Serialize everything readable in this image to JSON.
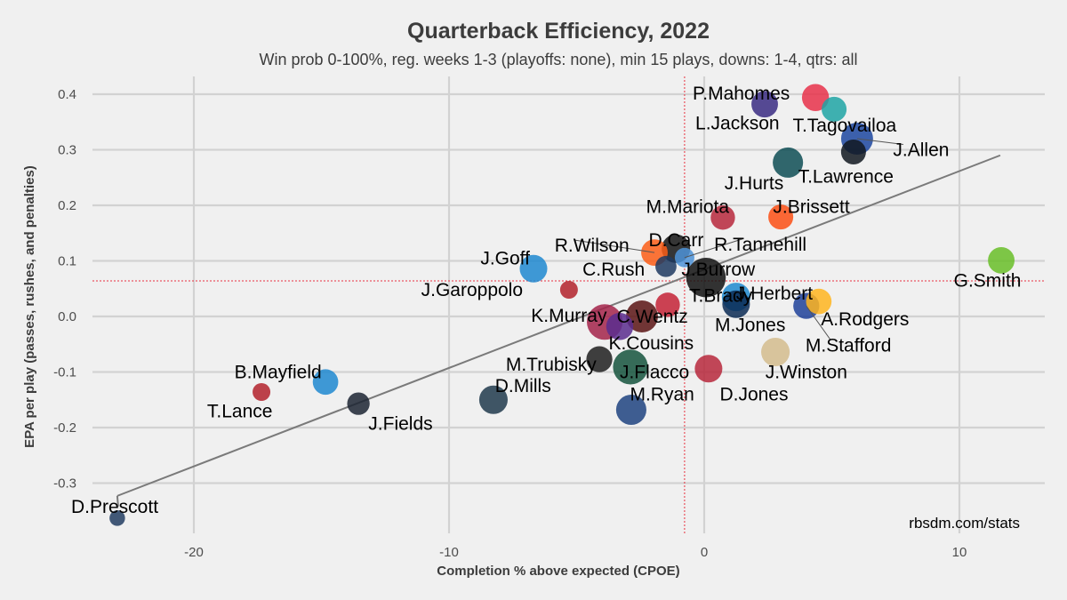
{
  "chart_data": {
    "type": "scatter",
    "title": "Quarterback Efficiency, 2022",
    "subtitle": "Win prob 0-100%, reg. weeks 1-3 (playoffs: none), min 15 plays, downs: 1-4, qtrs: all",
    "xlabel": "Completion % above expected (CPOE)",
    "ylabel": "EPA per play (passes, rushes, and penalties)",
    "caption": "rbsdm.com/stats",
    "xlim": [
      -24.4,
      13.3
    ],
    "ylim": [
      -0.375,
      0.42
    ],
    "x_ticks": [
      -20,
      -10,
      0,
      10
    ],
    "x_tick_labels": [
      "-20",
      "-10",
      "0",
      "10"
    ],
    "y_ticks": [
      0.4,
      0.3,
      0.2,
      0.1,
      0.0,
      -0.1,
      -0.2,
      -0.3
    ],
    "y_tick_labels": [
      "0.4",
      "0.3",
      "0.2",
      "0.1",
      "0.0",
      "-0.1",
      "-0.2",
      "-0.3"
    ],
    "grid": true,
    "mean_lines": {
      "x": -0.77,
      "y": 0.064,
      "color": "#e8313f"
    },
    "fit_line": {
      "x": [
        -23.0,
        11.6
      ],
      "y": [
        -0.323,
        0.29
      ],
      "color": "#7a7a7a"
    },
    "points": [
      {
        "name": "D.Prescott",
        "x": -23.0,
        "y": -0.363,
        "plays": 15,
        "color": "#223d62",
        "lx": -23.1,
        "ly": -0.342,
        "anchor": "middle"
      },
      {
        "name": "T.Lance",
        "x": -17.35,
        "y": -0.136,
        "plays": 25,
        "color": "#b3222b",
        "lx": -18.2,
        "ly": -0.17,
        "anchor": "middle"
      },
      {
        "name": "B.Mayfield",
        "x": -14.84,
        "y": -0.118,
        "plays": 80,
        "color": "#1e88d0",
        "lx": -16.7,
        "ly": -0.1,
        "anchor": "middle"
      },
      {
        "name": "J.Fields",
        "x": -13.55,
        "y": -0.157,
        "plays": 55,
        "color": "#1c2433",
        "lx": -11.9,
        "ly": -0.193,
        "anchor": "middle"
      },
      {
        "name": "D.Mills",
        "x": -8.26,
        "y": -0.15,
        "plays": 110,
        "color": "#203a4c",
        "lx": -7.1,
        "ly": -0.125,
        "anchor": "middle"
      },
      {
        "name": "M.Trubisky",
        "x": -4.11,
        "y": -0.077,
        "plays": 85,
        "color": "#1e1e1e",
        "lx": -6.0,
        "ly": -0.086,
        "anchor": "middle"
      },
      {
        "name": "M.Ryan",
        "x": -2.86,
        "y": -0.168,
        "plays": 130,
        "color": "#1f4380",
        "lx": -1.65,
        "ly": -0.14,
        "anchor": "middle"
      },
      {
        "name": "J.Flacco",
        "x": -2.89,
        "y": -0.091,
        "plays": 190,
        "color": "#15533d",
        "lx": -1.95,
        "ly": -0.1,
        "anchor": "middle"
      },
      {
        "name": "D.Jones",
        "x": 0.17,
        "y": -0.094,
        "plays": 100,
        "color": "#b7283c",
        "lx": 1.95,
        "ly": -0.14,
        "anchor": "middle"
      },
      {
        "name": "J.Winston",
        "x": 2.79,
        "y": -0.064,
        "plays": 110,
        "color": "#d3bc8d",
        "lx": 4.0,
        "ly": -0.1,
        "anchor": "middle"
      },
      {
        "name": "K.Cousins",
        "x": -3.31,
        "y": -0.018,
        "plays": 95,
        "color": "#5b2d8e",
        "lx": -2.08,
        "ly": -0.048,
        "anchor": "middle"
      },
      {
        "name": "K.Murray",
        "x": -3.9,
        "y": -0.01,
        "plays": 200,
        "color": "#a3234a",
        "lx": -5.3,
        "ly": 0.002,
        "anchor": "middle"
      },
      {
        "name": "C.Wentz",
        "x": -2.44,
        "y": 0.0,
        "plays": 150,
        "color": "#5a1414",
        "lx": -2.03,
        "ly": 0.0,
        "anchor": "middle"
      },
      {
        "name": "T.Brady",
        "x": -1.43,
        "y": 0.021,
        "plays": 70,
        "color": "#c42236",
        "lx": 0.65,
        "ly": 0.038,
        "anchor": "middle"
      },
      {
        "name": "J.Herbert",
        "x": 1.25,
        "y": 0.035,
        "plays": 110,
        "color": "#1f89cf",
        "lx": 2.75,
        "ly": 0.042,
        "anchor": "middle"
      },
      {
        "name": "M.Jones",
        "x": 1.25,
        "y": 0.022,
        "plays": 100,
        "color": "#0b2a54",
        "lx": 1.8,
        "ly": -0.015,
        "anchor": "middle"
      },
      {
        "name": "A.Rodgers",
        "x": 4.49,
        "y": 0.027,
        "plays": 80,
        "color": "#ffb51e",
        "lx": 6.3,
        "ly": -0.005,
        "anchor": "middle"
      },
      {
        "name": "M.Stafford",
        "x": 4.0,
        "y": 0.019,
        "plays": 85,
        "color": "#1e4199",
        "lx": 5.65,
        "ly": -0.052,
        "anchor": "middle",
        "leader": true
      },
      {
        "name": "J.Garoppolo",
        "x": -5.3,
        "y": 0.048,
        "plays": 25,
        "color": "#b3222b",
        "lx": -9.1,
        "ly": 0.048,
        "anchor": "middle"
      },
      {
        "name": "J.Goff",
        "x": -6.69,
        "y": 0.086,
        "plays": 100,
        "color": "#1e88d0",
        "lx": -7.8,
        "ly": 0.105,
        "anchor": "middle"
      },
      {
        "name": "C.Rush",
        "x": -1.5,
        "y": 0.09,
        "plays": 45,
        "color": "#1e3a60",
        "lx": -3.55,
        "ly": 0.085,
        "anchor": "middle"
      },
      {
        "name": "R.Wilson",
        "x": -1.95,
        "y": 0.115,
        "plays": 90,
        "color": "#fb5d16",
        "lx": -4.4,
        "ly": 0.128,
        "anchor": "middle",
        "leader": true
      },
      {
        "name": "D.Carr",
        "x": -1.11,
        "y": 0.122,
        "plays": 110,
        "color": "#141414",
        "lx": -1.1,
        "ly": 0.138,
        "anchor": "middle"
      },
      {
        "name": "R.Tannehill",
        "x": -0.77,
        "y": 0.106,
        "plays": 35,
        "color": "#4e93d8",
        "lx": 2.2,
        "ly": 0.13,
        "anchor": "middle",
        "leader": true
      },
      {
        "name": "J.Burrow",
        "x": 0.07,
        "y": 0.07,
        "plays": 260,
        "color": "#101010",
        "lx": 0.55,
        "ly": 0.085,
        "anchor": "middle"
      },
      {
        "name": "M.Mariota",
        "x": 0.73,
        "y": 0.178,
        "plays": 70,
        "color": "#b7283c",
        "lx": -0.65,
        "ly": 0.198,
        "anchor": "middle"
      },
      {
        "name": "J.Brissett",
        "x": 3.0,
        "y": 0.179,
        "plays": 75,
        "color": "#fb4f14",
        "lx": 4.2,
        "ly": 0.198,
        "anchor": "middle"
      },
      {
        "name": "J.Hurts",
        "x": 3.28,
        "y": 0.277,
        "plays": 130,
        "color": "#0e4d55",
        "lx": 1.95,
        "ly": 0.24,
        "anchor": "middle"
      },
      {
        "name": "T.Lawrence",
        "x": 5.85,
        "y": 0.296,
        "plays": 75,
        "color": "#101820",
        "lx": 5.55,
        "ly": 0.252,
        "anchor": "middle"
      },
      {
        "name": "J.Allen",
        "x": 5.99,
        "y": 0.32,
        "plays": 150,
        "color": "#1c47a0",
        "lx": 8.5,
        "ly": 0.3,
        "anchor": "middle",
        "leader": true
      },
      {
        "name": "T.Tagovailoa",
        "x": 5.09,
        "y": 0.373,
        "plays": 75,
        "color": "#1ea4a4",
        "lx": 5.5,
        "ly": 0.344,
        "anchor": "middle"
      },
      {
        "name": "L.Jackson",
        "x": 2.37,
        "y": 0.382,
        "plays": 90,
        "color": "#3a2b82",
        "lx": 1.3,
        "ly": 0.348,
        "anchor": "middle"
      },
      {
        "name": "P.Mahomes",
        "x": 4.36,
        "y": 0.394,
        "plays": 95,
        "color": "#e8314a",
        "lx": 1.45,
        "ly": 0.402,
        "anchor": "middle"
      },
      {
        "name": "G.Smith",
        "x": 11.64,
        "y": 0.101,
        "plays": 90,
        "color": "#69be28",
        "lx": 11.1,
        "ly": 0.065,
        "anchor": "middle"
      }
    ]
  }
}
